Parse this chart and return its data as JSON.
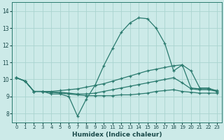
{
  "background_color": "#cceae8",
  "grid_color": "#aad4d0",
  "line_color": "#2a7a6e",
  "xlabel": "Humidex (Indice chaleur)",
  "x_ticks": [
    0,
    1,
    2,
    3,
    4,
    5,
    6,
    7,
    8,
    9,
    10,
    11,
    12,
    13,
    14,
    15,
    16,
    17,
    18,
    19,
    20,
    21,
    22,
    23
  ],
  "xlim": [
    -0.5,
    23.5
  ],
  "ylim": [
    7.5,
    14.5
  ],
  "y_ticks": [
    8,
    9,
    10,
    11,
    12,
    13,
    14
  ],
  "series1_x": [
    0,
    1,
    2,
    3,
    4,
    5,
    6,
    7,
    8,
    9,
    10,
    11,
    12,
    13,
    14,
    15,
    16,
    17,
    18,
    19,
    20,
    21,
    22,
    23
  ],
  "series1_y": [
    10.1,
    9.9,
    9.3,
    9.3,
    9.15,
    9.15,
    9.0,
    7.85,
    8.85,
    9.65,
    10.8,
    11.8,
    12.75,
    13.3,
    13.6,
    13.55,
    13.0,
    12.1,
    10.5,
    10.85,
    10.5,
    9.5,
    9.5,
    9.3
  ],
  "series2_x": [
    0,
    1,
    2,
    3,
    4,
    5,
    6,
    7,
    8,
    9,
    10,
    11,
    12,
    13,
    14,
    15,
    16,
    17,
    18,
    19,
    20,
    21,
    22,
    23
  ],
  "series2_y": [
    10.1,
    9.9,
    9.3,
    9.3,
    9.3,
    9.35,
    9.4,
    9.45,
    9.55,
    9.65,
    9.75,
    9.9,
    10.05,
    10.2,
    10.35,
    10.5,
    10.6,
    10.7,
    10.8,
    10.85,
    9.5,
    9.45,
    9.45,
    9.35
  ],
  "series3_x": [
    0,
    1,
    2,
    3,
    4,
    5,
    6,
    7,
    8,
    9,
    10,
    11,
    12,
    13,
    14,
    15,
    16,
    17,
    18,
    19,
    20,
    21,
    22,
    23
  ],
  "series3_y": [
    10.1,
    9.9,
    9.3,
    9.3,
    9.25,
    9.25,
    9.2,
    9.15,
    9.15,
    9.2,
    9.3,
    9.4,
    9.5,
    9.6,
    9.7,
    9.8,
    9.9,
    10.0,
    10.1,
    9.8,
    9.45,
    9.4,
    9.4,
    9.3
  ],
  "series4_x": [
    0,
    1,
    2,
    3,
    4,
    5,
    6,
    7,
    8,
    9,
    10,
    11,
    12,
    13,
    14,
    15,
    16,
    17,
    18,
    19,
    20,
    21,
    22,
    23
  ],
  "series4_y": [
    10.1,
    9.9,
    9.3,
    9.3,
    9.25,
    9.2,
    9.15,
    9.1,
    9.05,
    9.05,
    9.05,
    9.05,
    9.1,
    9.1,
    9.15,
    9.2,
    9.3,
    9.35,
    9.4,
    9.3,
    9.25,
    9.2,
    9.2,
    9.2
  ]
}
